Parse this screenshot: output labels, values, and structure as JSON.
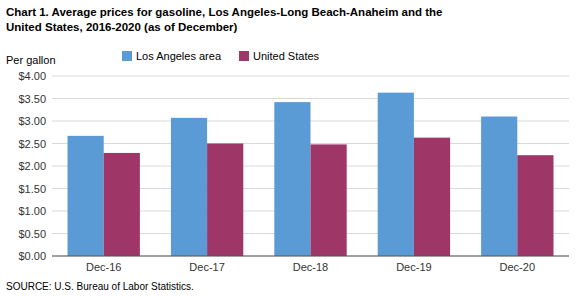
{
  "chart_data": {
    "type": "bar",
    "title": "Chart 1. Average prices for gasoline, Los Angeles-Long Beach-Anaheim and the",
    "subtitle": "United States, 2016-2020 (as of December)",
    "ylabel": "Per gallon",
    "annotations": [
      "SOURCE: U.S. Bureau of Labor Statistics."
    ],
    "categories": [
      "Dec-16",
      "Dec-17",
      "Dec-18",
      "Dec-19",
      "Dec-20"
    ],
    "series": [
      {
        "name": "Los Angeles area",
        "color": "#5B9BD5",
        "values": [
          2.67,
          3.07,
          3.42,
          3.63,
          3.1
        ]
      },
      {
        "name": "United States",
        "color": "#9E3668",
        "values": [
          2.29,
          2.5,
          2.48,
          2.63,
          2.24
        ]
      }
    ],
    "ylim": [
      0,
      4.0
    ],
    "yticks": [
      {
        "value": 0.0,
        "label": "$0.00"
      },
      {
        "value": 0.5,
        "label": "$0.50"
      },
      {
        "value": 1.0,
        "label": "$1.00"
      },
      {
        "value": 1.5,
        "label": "$1.50"
      },
      {
        "value": 2.0,
        "label": "$2.00"
      },
      {
        "value": 2.5,
        "label": "$2.50"
      },
      {
        "value": 3.0,
        "label": "$3.00"
      },
      {
        "value": 3.5,
        "label": "$3.50"
      },
      {
        "value": 4.0,
        "label": "$4.00"
      }
    ],
    "grid": true,
    "legend": "upper left"
  }
}
